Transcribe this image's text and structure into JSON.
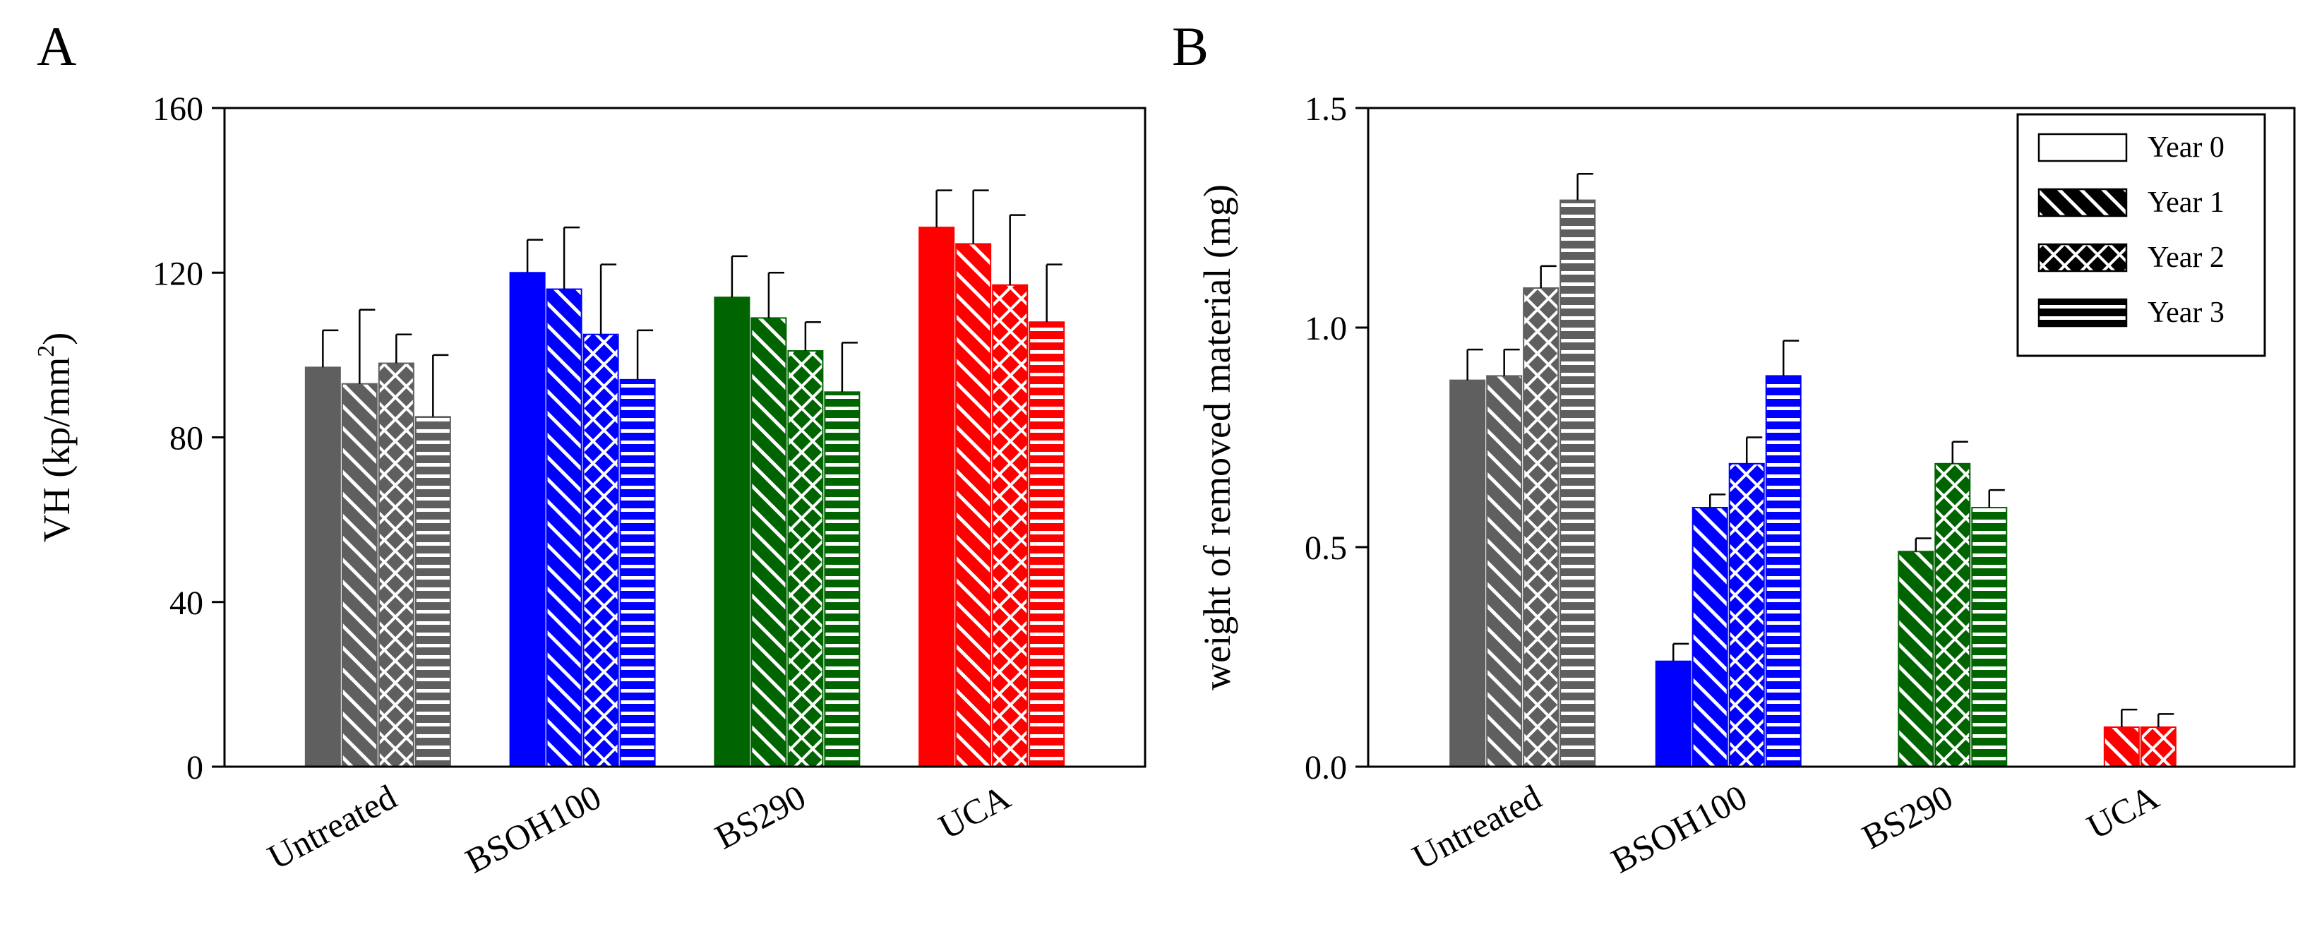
{
  "legend": {
    "entries": [
      {
        "label": "Year 0",
        "pattern": "solid"
      },
      {
        "label": "Year 1",
        "pattern": "diag"
      },
      {
        "label": "Year 2",
        "pattern": "cross"
      },
      {
        "label": "Year 3",
        "pattern": "horiz"
      }
    ]
  },
  "group_colors": {
    "Untreated": "#5f5f5f",
    "BSOH100": "#0000ff",
    "BS290": "#006400",
    "UCA": "#ff0000"
  },
  "chart_data": [
    {
      "type": "bar",
      "panel": "A",
      "title": "",
      "xlabel": "",
      "ylabel": "VH (kp/mm²)",
      "ylabel_main": "VH (kp/mm",
      "ylabel_sup": "2",
      "ylabel_tail": ")",
      "ylim": [
        0,
        160
      ],
      "yticks": [
        0,
        40,
        80,
        120,
        160
      ],
      "ytick_labels": [
        "0",
        "40",
        "80",
        "120",
        "160"
      ],
      "categories": [
        "Untreated",
        "BSOH100",
        "BS290",
        "UCA"
      ],
      "series": [
        {
          "name": "Year 0",
          "values": [
            97,
            120,
            114,
            131
          ],
          "errors": [
            9,
            8,
            10,
            9
          ]
        },
        {
          "name": "Year 1",
          "values": [
            93,
            116,
            109,
            127
          ],
          "errors": [
            18,
            15,
            11,
            13
          ]
        },
        {
          "name": "Year 2",
          "values": [
            98,
            105,
            101,
            117
          ],
          "errors": [
            7,
            17,
            7,
            17
          ]
        },
        {
          "name": "Year 3",
          "values": [
            85,
            94,
            91,
            108
          ],
          "errors": [
            15,
            12,
            12,
            14
          ]
        }
      ]
    },
    {
      "type": "bar",
      "panel": "B",
      "title": "",
      "xlabel": "",
      "ylabel": "weight of removed material (mg)",
      "ylim": [
        0,
        1.5
      ],
      "yticks": [
        0,
        0.5,
        1.0,
        1.5
      ],
      "ytick_labels": [
        "0.0",
        "0.5",
        "1.0",
        "1.5"
      ],
      "categories": [
        "Untreated",
        "BSOH100",
        "BS290",
        "UCA"
      ],
      "series": [
        {
          "name": "Year 0",
          "values": [
            0.88,
            0.24,
            0.0,
            0.0
          ],
          "errors": [
            0.07,
            0.04,
            0.0,
            0.0
          ]
        },
        {
          "name": "Year 1",
          "values": [
            0.89,
            0.59,
            0.49,
            0.09
          ],
          "errors": [
            0.06,
            0.03,
            0.03,
            0.04
          ]
        },
        {
          "name": "Year 2",
          "values": [
            1.09,
            0.69,
            0.69,
            0.09
          ],
          "errors": [
            0.05,
            0.06,
            0.05,
            0.03
          ]
        },
        {
          "name": "Year 3",
          "values": [
            1.29,
            0.89,
            0.59,
            0.0
          ],
          "errors": [
            0.06,
            0.08,
            0.04,
            0.0
          ]
        }
      ]
    }
  ]
}
